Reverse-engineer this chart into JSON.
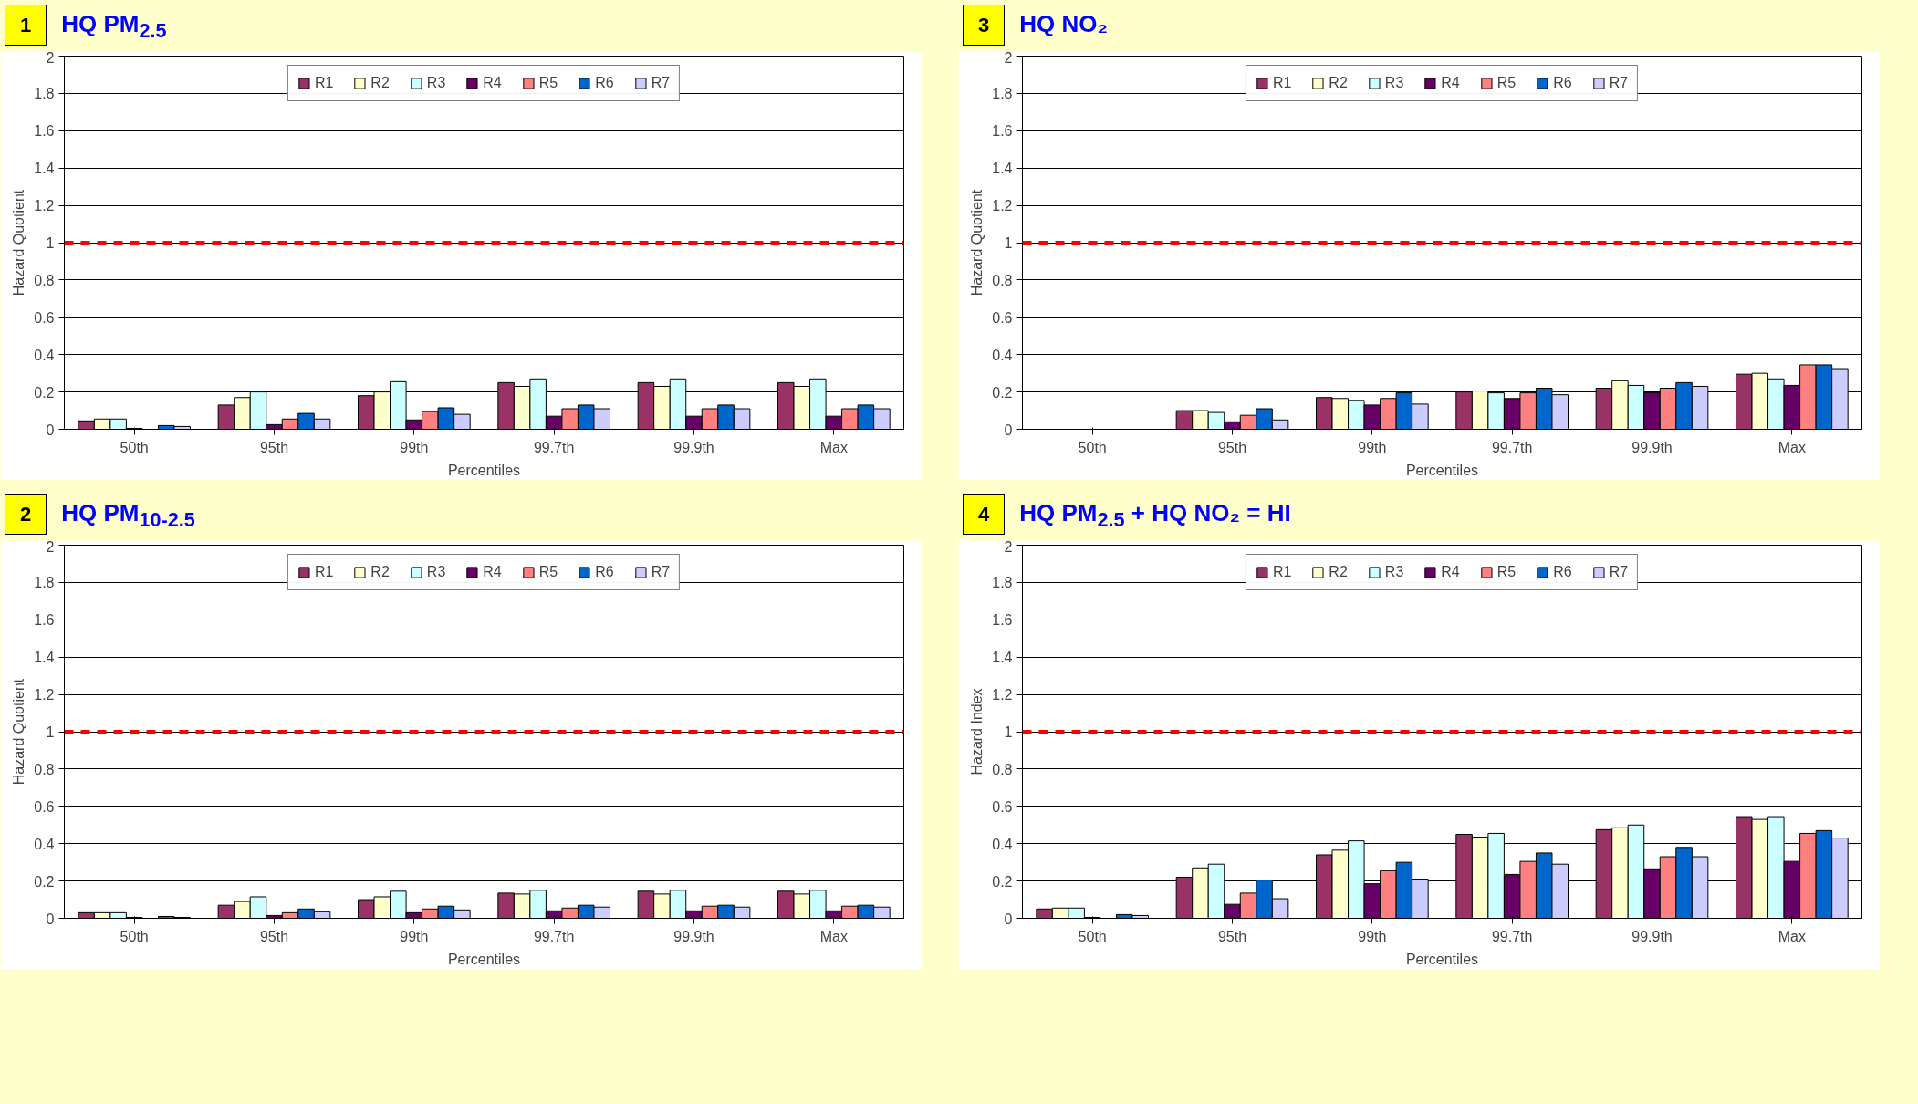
{
  "chart_data": [
    {
      "type": "bar",
      "title": "HQ PM$_{2.5}$",
      "annotations": [
        "1"
      ],
      "xlabel": "Percentiles",
      "ylabel": "Hazard Quotient",
      "categories": [
        "50th",
        "95th",
        "99th",
        "99.7th",
        "99.9th",
        "Max"
      ],
      "series": [
        {
          "name": "R1",
          "color": "#993366",
          "values": [
            0.045,
            0.13,
            0.18,
            0.25,
            0.25,
            0.25
          ]
        },
        {
          "name": "R2",
          "color": "#ffffcc",
          "values": [
            0.055,
            0.17,
            0.2,
            0.23,
            0.23,
            0.23
          ]
        },
        {
          "name": "R3",
          "color": "#ccffff",
          "values": [
            0.055,
            0.2,
            0.255,
            0.27,
            0.27,
            0.27
          ]
        },
        {
          "name": "R4",
          "color": "#660066",
          "values": [
            0.005,
            0.025,
            0.05,
            0.07,
            0.07,
            0.07
          ]
        },
        {
          "name": "R5",
          "color": "#ff8080",
          "values": [
            null,
            0.055,
            0.095,
            0.11,
            0.11,
            0.11
          ]
        },
        {
          "name": "R6",
          "color": "#0066cc",
          "values": [
            0.02,
            0.085,
            0.115,
            0.13,
            0.13,
            0.13
          ]
        },
        {
          "name": "R7",
          "color": "#ccccff",
          "values": [
            0.015,
            0.055,
            0.08,
            0.11,
            0.11,
            0.11
          ]
        }
      ],
      "ylim": [
        0,
        2
      ],
      "yticks": [
        0,
        0.2,
        0.4,
        0.6,
        0.8,
        1,
        1.2,
        1.4,
        1.6,
        1.8,
        2
      ],
      "grid": "y",
      "legend": "top",
      "ref_lines": [
        {
          "axis": "y",
          "value": 1,
          "color": "#ff0000",
          "line_style": "dashed"
        }
      ]
    },
    {
      "type": "bar",
      "title": "HQ NO₂",
      "annotations": [
        "3"
      ],
      "xlabel": "Percentiles",
      "ylabel": "Hazard Quotient",
      "categories": [
        "50th",
        "95th",
        "99th",
        "99.7th",
        "99.9th",
        "Max"
      ],
      "series": [
        {
          "name": "R1",
          "color": "#993366",
          "values": [
            null,
            0.1,
            0.17,
            0.2,
            0.22,
            0.295
          ]
        },
        {
          "name": "R2",
          "color": "#ffffcc",
          "values": [
            null,
            0.1,
            0.165,
            0.205,
            0.26,
            0.3
          ]
        },
        {
          "name": "R3",
          "color": "#ccffff",
          "values": [
            null,
            0.09,
            0.155,
            0.195,
            0.235,
            0.27
          ]
        },
        {
          "name": "R4",
          "color": "#660066",
          "values": [
            null,
            0.04,
            0.13,
            0.165,
            0.195,
            0.235
          ]
        },
        {
          "name": "R5",
          "color": "#ff8080",
          "values": [
            null,
            0.075,
            0.165,
            0.195,
            0.22,
            0.345
          ]
        },
        {
          "name": "R6",
          "color": "#0066cc",
          "values": [
            null,
            0.11,
            0.195,
            0.22,
            0.25,
            0.345
          ]
        },
        {
          "name": "R7",
          "color": "#ccccff",
          "values": [
            null,
            0.05,
            0.135,
            0.185,
            0.23,
            0.325
          ]
        }
      ],
      "ylim": [
        0,
        2
      ],
      "yticks": [
        0,
        0.2,
        0.4,
        0.6,
        0.8,
        1,
        1.2,
        1.4,
        1.6,
        1.8,
        2
      ],
      "grid": "y",
      "legend": "top",
      "ref_lines": [
        {
          "axis": "y",
          "value": 1,
          "color": "#ff0000",
          "line_style": "dashed"
        }
      ]
    },
    {
      "type": "bar",
      "title": "HQ PM$_{10-2.5}$",
      "annotations": [
        "2"
      ],
      "xlabel": "Percentiles",
      "ylabel": "Hazard Quotient",
      "categories": [
        "50th",
        "95th",
        "99th",
        "99.7th",
        "99.9th",
        "Max"
      ],
      "series": [
        {
          "name": "R1",
          "color": "#993366",
          "values": [
            0.03,
            0.07,
            0.1,
            0.135,
            0.145,
            0.145
          ]
        },
        {
          "name": "R2",
          "color": "#ffffcc",
          "values": [
            0.03,
            0.09,
            0.115,
            0.13,
            0.13,
            0.13
          ]
        },
        {
          "name": "R3",
          "color": "#ccffff",
          "values": [
            0.03,
            0.115,
            0.145,
            0.15,
            0.15,
            0.15
          ]
        },
        {
          "name": "R4",
          "color": "#660066",
          "values": [
            0.005,
            0.015,
            0.03,
            0.04,
            0.04,
            0.04
          ]
        },
        {
          "name": "R5",
          "color": "#ff8080",
          "values": [
            null,
            0.03,
            0.05,
            0.055,
            0.065,
            0.065
          ]
        },
        {
          "name": "R6",
          "color": "#0066cc",
          "values": [
            0.01,
            0.05,
            0.065,
            0.07,
            0.07,
            0.07
          ]
        },
        {
          "name": "R7",
          "color": "#ccccff",
          "values": [
            0.005,
            0.035,
            0.045,
            0.06,
            0.06,
            0.06
          ]
        }
      ],
      "ylim": [
        0,
        2
      ],
      "yticks": [
        0,
        0.2,
        0.4,
        0.6,
        0.8,
        1,
        1.2,
        1.4,
        1.6,
        1.8,
        2
      ],
      "grid": "y",
      "legend": "top",
      "ref_lines": [
        {
          "axis": "y",
          "value": 1,
          "color": "#ff0000",
          "line_style": "dashed"
        }
      ]
    },
    {
      "type": "bar",
      "title": "HQ PM$_{2.5}$ + HQ NO₂ = HI",
      "annotations": [
        "4"
      ],
      "xlabel": "Percentiles",
      "ylabel": "Hazard Index",
      "categories": [
        "50th",
        "95th",
        "99th",
        "99.7th",
        "99.9th",
        "Max"
      ],
      "series": [
        {
          "name": "R1",
          "color": "#993366",
          "values": [
            0.05,
            0.22,
            0.34,
            0.45,
            0.475,
            0.545
          ]
        },
        {
          "name": "R2",
          "color": "#ffffcc",
          "values": [
            0.055,
            0.27,
            0.365,
            0.435,
            0.485,
            0.53
          ]
        },
        {
          "name": "R3",
          "color": "#ccffff",
          "values": [
            0.055,
            0.29,
            0.415,
            0.455,
            0.5,
            0.545
          ]
        },
        {
          "name": "R4",
          "color": "#660066",
          "values": [
            0.005,
            0.075,
            0.185,
            0.235,
            0.265,
            0.305
          ]
        },
        {
          "name": "R5",
          "color": "#ff8080",
          "values": [
            null,
            0.135,
            0.255,
            0.305,
            0.33,
            0.455
          ]
        },
        {
          "name": "R6",
          "color": "#0066cc",
          "values": [
            0.02,
            0.205,
            0.3,
            0.35,
            0.38,
            0.47
          ]
        },
        {
          "name": "R7",
          "color": "#ccccff",
          "values": [
            0.015,
            0.105,
            0.21,
            0.29,
            0.33,
            0.43
          ]
        }
      ],
      "ylim": [
        0,
        2
      ],
      "yticks": [
        0,
        0.2,
        0.4,
        0.6,
        0.8,
        1,
        1.2,
        1.4,
        1.6,
        1.8,
        2
      ],
      "grid": "y",
      "legend": "top",
      "ref_lines": [
        {
          "axis": "y",
          "value": 1,
          "color": "#ff0000",
          "line_style": "dashed"
        }
      ]
    }
  ]
}
